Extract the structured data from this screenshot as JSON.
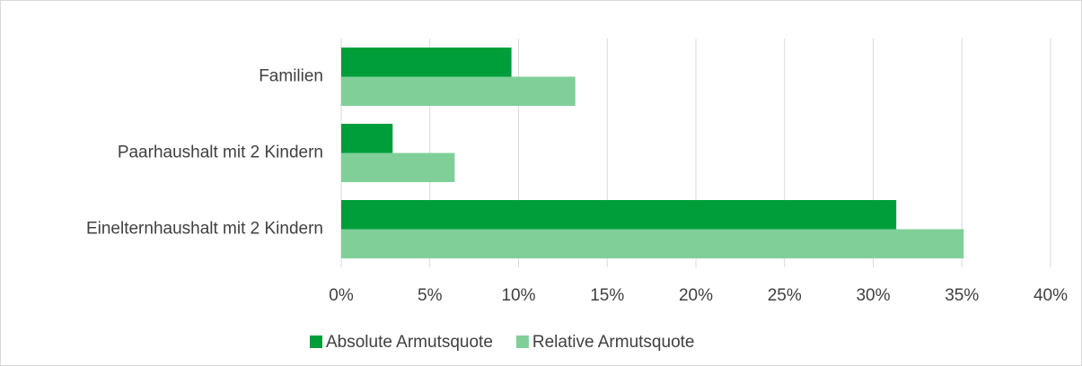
{
  "chart_data": {
    "type": "bar",
    "orientation": "horizontal",
    "categories": [
      "Familien",
      "Paarhaushalt mit 2 Kindern",
      "Einelternhaushalt mit 2 Kindern"
    ],
    "series": [
      {
        "name": "Absolute Armutsquote",
        "color": "#009e3b",
        "values": [
          9.6,
          2.9,
          31.3
        ]
      },
      {
        "name": "Relative Armutsquote",
        "color": "#80cf99",
        "values": [
          13.2,
          6.4,
          35.1
        ]
      }
    ],
    "xlim": [
      0,
      40
    ],
    "xticks": [
      {
        "value": 0,
        "label": "0%"
      },
      {
        "value": 5,
        "label": "5%"
      },
      {
        "value": 10,
        "label": "10%"
      },
      {
        "value": 15,
        "label": "15%"
      },
      {
        "value": 20,
        "label": "20%"
      },
      {
        "value": 25,
        "label": "25%"
      },
      {
        "value": 30,
        "label": "30%"
      },
      {
        "value": 35,
        "label": "35%"
      },
      {
        "value": 40,
        "label": "40%"
      }
    ],
    "grid": true,
    "legend": "bottom"
  }
}
